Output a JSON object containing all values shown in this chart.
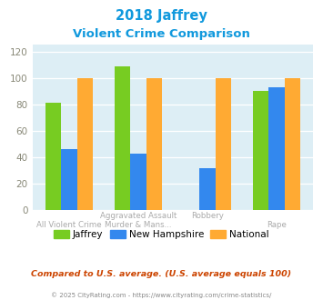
{
  "title_line1": "2018 Jaffrey",
  "title_line2": "Violent Crime Comparison",
  "categories": [
    "All Violent Crime",
    "Aggravated Assault\nMurder & Mans...",
    "Robbery",
    "Rape"
  ],
  "jaffrey": [
    81,
    109,
    0,
    90
  ],
  "new_hampshire": [
    46,
    43,
    32,
    93
  ],
  "national": [
    100,
    100,
    100,
    100
  ],
  "bar_colors": {
    "jaffrey": "#77cc22",
    "new_hampshire": "#3388ee",
    "national": "#ffaa33"
  },
  "ylim": [
    0,
    125
  ],
  "yticks": [
    0,
    20,
    40,
    60,
    80,
    100,
    120
  ],
  "title_color": "#1199dd",
  "legend_labels": [
    "Jaffrey",
    "New Hampshire",
    "National"
  ],
  "footnote1": "Compared to U.S. average. (U.S. average equals 100)",
  "footnote2": "© 2025 CityRating.com - https://www.cityrating.com/crime-statistics/",
  "bg_color": "#ddeef5",
  "fig_bg_color": "#ffffff",
  "xtick_top_labels": [
    "",
    "Aggravated Assault",
    "Robbery",
    ""
  ],
  "xtick_bot_labels": [
    "All Violent Crime",
    "Murder & Mans...",
    "",
    "Rape"
  ]
}
